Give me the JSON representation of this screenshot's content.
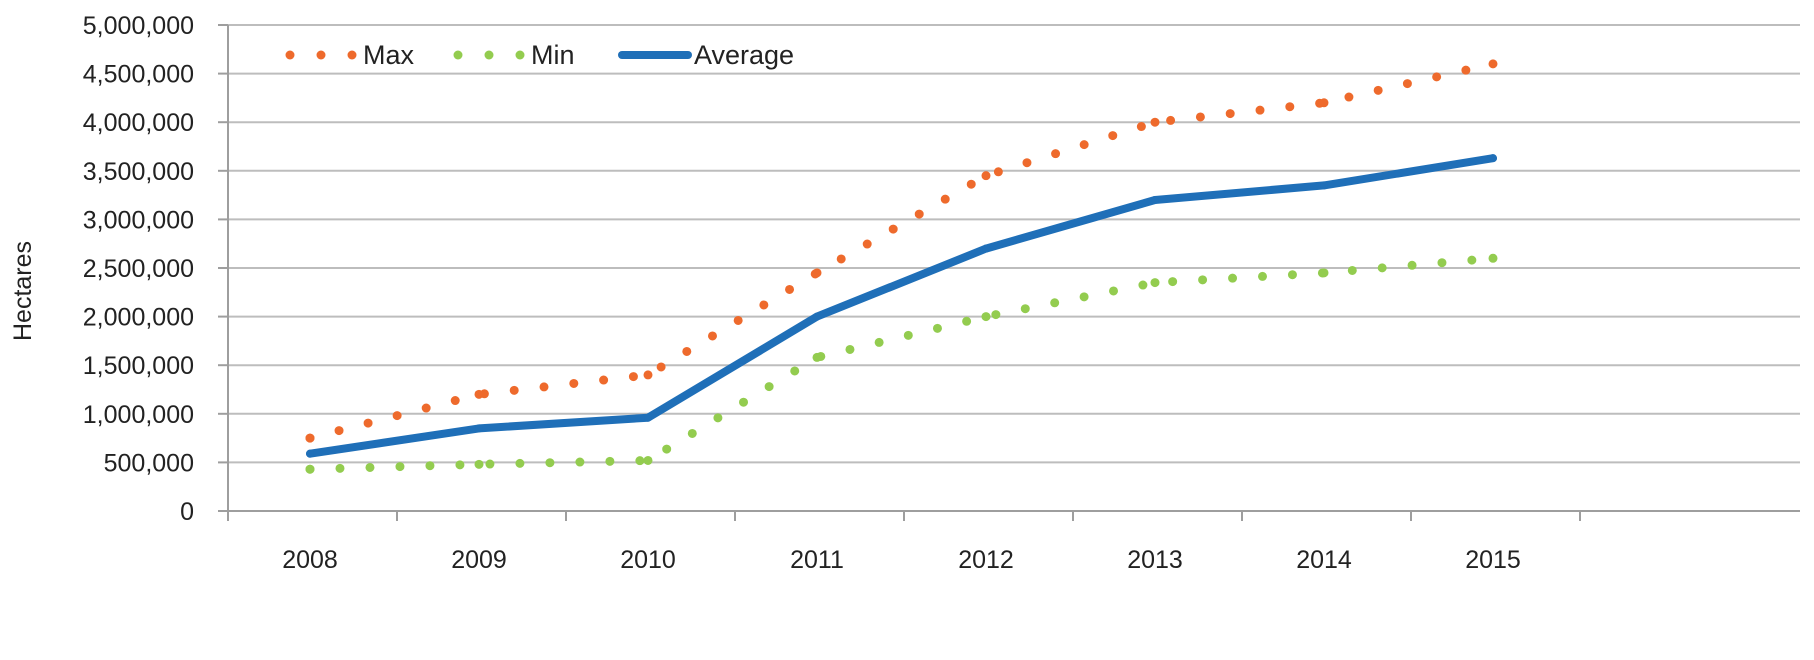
{
  "chart_data": {
    "type": "line",
    "title": "",
    "xlabel": "",
    "ylabel": "Hectares",
    "ylim": [
      0,
      5000000
    ],
    "yticks": [
      0,
      500000,
      1000000,
      1500000,
      2000000,
      2500000,
      3000000,
      3500000,
      4000000,
      4500000,
      5000000
    ],
    "ytick_labels": [
      "0",
      "500,000",
      "1,000,000",
      "1,500,000",
      "2,000,000",
      "2,500,000",
      "3,000,000",
      "3,500,000",
      "4,000,000",
      "4,500,000",
      "5,000,000"
    ],
    "categories": [
      "2008",
      "2009",
      "2010",
      "2011",
      "2012",
      "2013",
      "2014",
      "2015"
    ],
    "grid": true,
    "legend_position": "top-left",
    "series": [
      {
        "name": "Max",
        "style": "dotted",
        "color": "#EE6A2C",
        "values": [
          750000,
          1200000,
          1400000,
          2450000,
          3450000,
          4000000,
          4200000,
          4600000
        ]
      },
      {
        "name": "Min",
        "style": "dotted",
        "color": "#93CC4F",
        "values": [
          430000,
          480000,
          520000,
          1580000,
          2000000,
          2350000,
          2450000,
          2600000
        ]
      },
      {
        "name": "Average",
        "style": "solid",
        "color": "#1F6FB8",
        "values": [
          590000,
          850000,
          960000,
          2000000,
          2700000,
          3200000,
          3350000,
          3630000
        ]
      }
    ]
  }
}
